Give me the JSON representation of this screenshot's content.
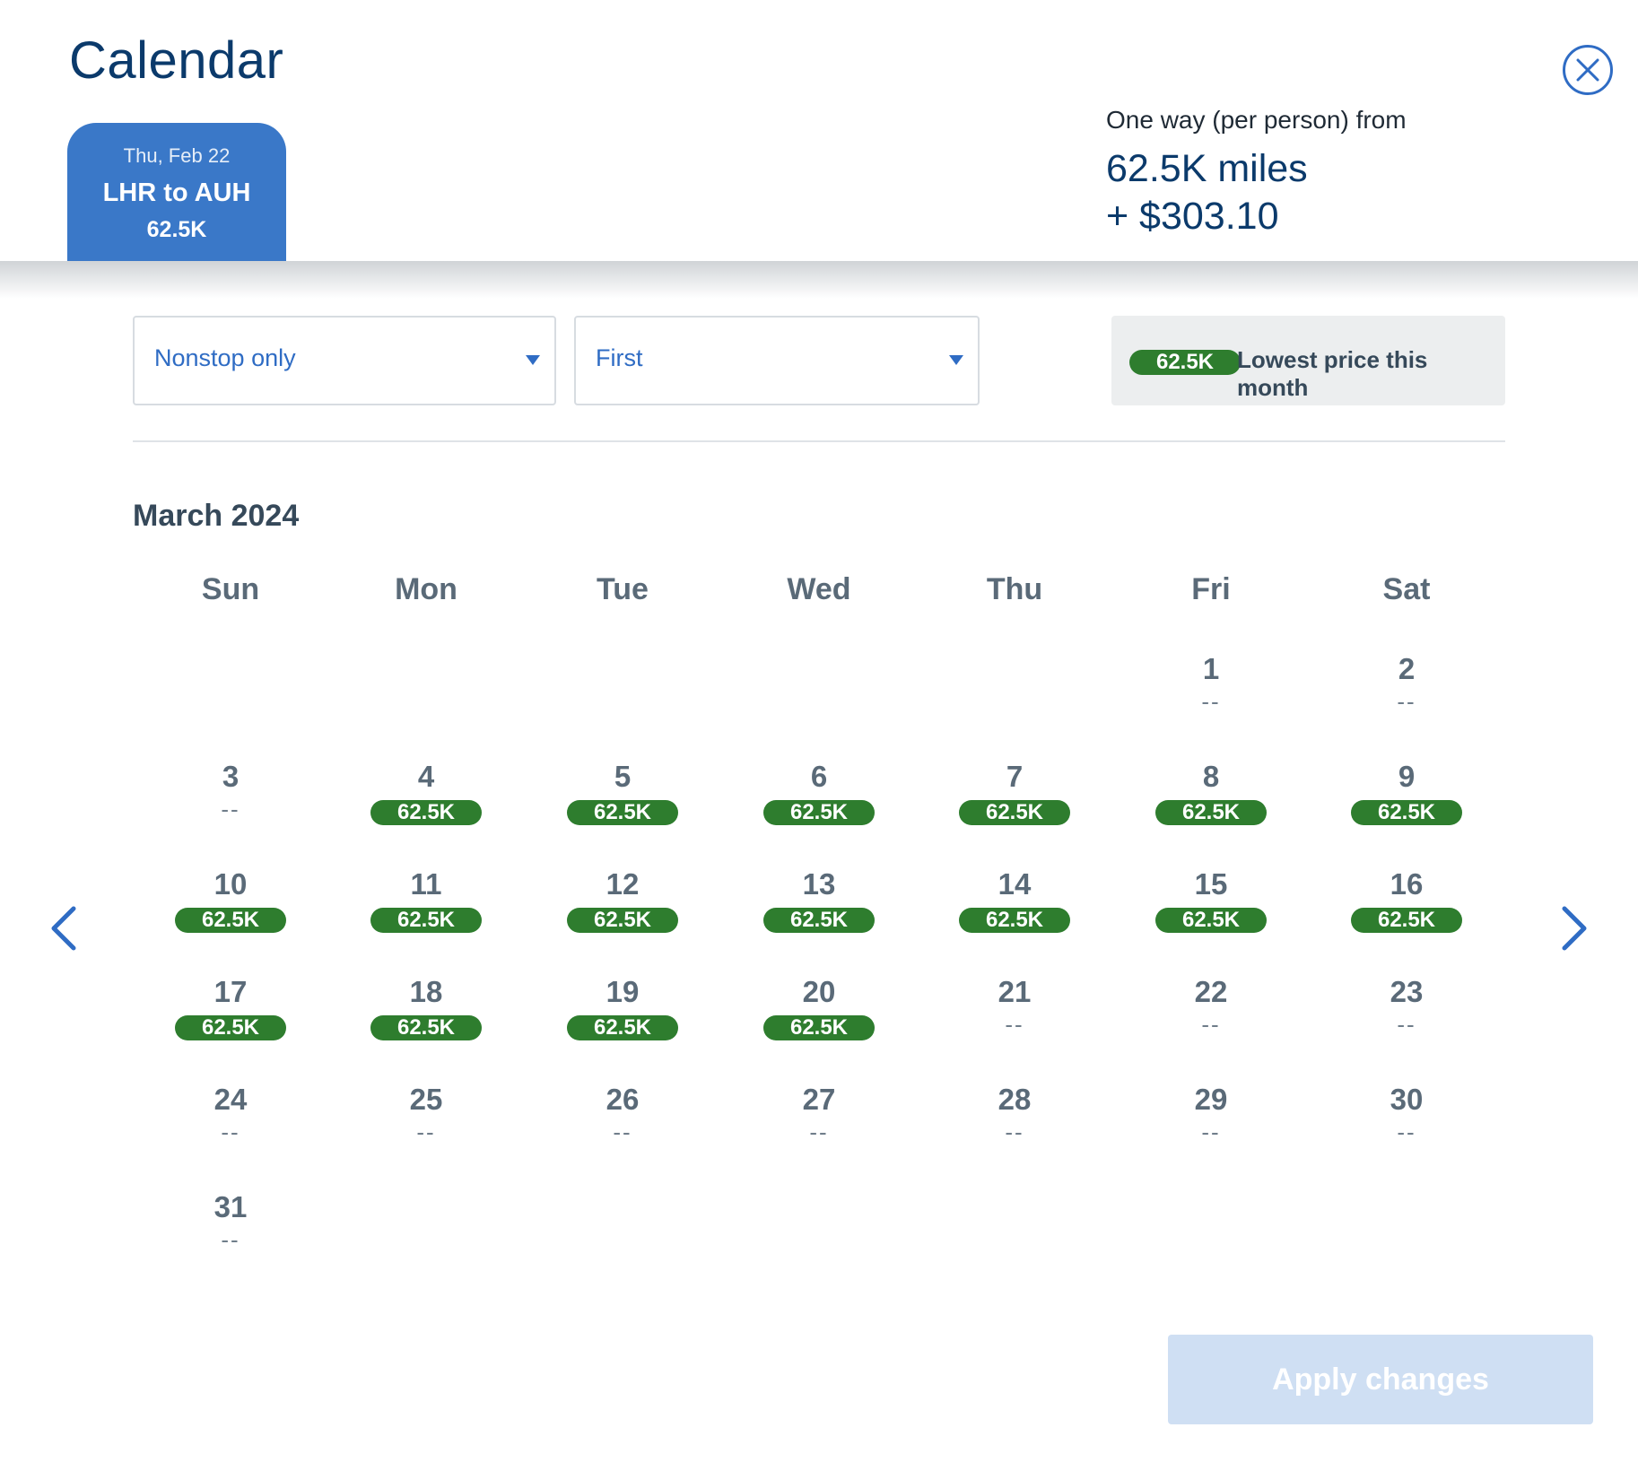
{
  "header": {
    "title": "Calendar",
    "close_icon": "close-icon"
  },
  "flight_tab": {
    "date": "Thu, Feb 22",
    "route": "LHR to AUH",
    "price": "62.5K"
  },
  "price_summary": {
    "caption": "One way (per person) from",
    "miles": "62.5K miles",
    "cash": "+ $303.10"
  },
  "filters": {
    "stops": {
      "value": "Nonstop only",
      "icon": "chevron-down-icon"
    },
    "cabin": {
      "value": "First",
      "icon": "chevron-down-icon"
    }
  },
  "legend": {
    "pill": "62.5K",
    "text": "Lowest price this month"
  },
  "calendar": {
    "month": "March 2024",
    "weekdays": [
      "Sun",
      "Mon",
      "Tue",
      "Wed",
      "Thu",
      "Fri",
      "Sat"
    ],
    "leading_blanks": 5,
    "days": [
      {
        "day": "1",
        "price": "--"
      },
      {
        "day": "2",
        "price": "--"
      },
      {
        "day": "3",
        "price": "--"
      },
      {
        "day": "4",
        "price": "62.5K"
      },
      {
        "day": "5",
        "price": "62.5K"
      },
      {
        "day": "6",
        "price": "62.5K"
      },
      {
        "day": "7",
        "price": "62.5K"
      },
      {
        "day": "8",
        "price": "62.5K"
      },
      {
        "day": "9",
        "price": "62.5K"
      },
      {
        "day": "10",
        "price": "62.5K"
      },
      {
        "day": "11",
        "price": "62.5K"
      },
      {
        "day": "12",
        "price": "62.5K"
      },
      {
        "day": "13",
        "price": "62.5K"
      },
      {
        "day": "14",
        "price": "62.5K"
      },
      {
        "day": "15",
        "price": "62.5K"
      },
      {
        "day": "16",
        "price": "62.5K"
      },
      {
        "day": "17",
        "price": "62.5K"
      },
      {
        "day": "18",
        "price": "62.5K"
      },
      {
        "day": "19",
        "price": "62.5K"
      },
      {
        "day": "20",
        "price": "62.5K"
      },
      {
        "day": "21",
        "price": "--"
      },
      {
        "day": "22",
        "price": "--"
      },
      {
        "day": "23",
        "price": "--"
      },
      {
        "day": "24",
        "price": "--"
      },
      {
        "day": "25",
        "price": "--"
      },
      {
        "day": "26",
        "price": "--"
      },
      {
        "day": "27",
        "price": "--"
      },
      {
        "day": "28",
        "price": "--"
      },
      {
        "day": "29",
        "price": "--"
      },
      {
        "day": "30",
        "price": "--"
      },
      {
        "day": "31",
        "price": "--"
      }
    ],
    "prev_icon": "chevron-left-icon",
    "next_icon": "chevron-right-icon"
  },
  "footer": {
    "apply_label": "Apply changes"
  },
  "colors": {
    "brand_blue": "#3a78c8",
    "title_navy": "#0b3a6b",
    "price_green": "#2e7d2e",
    "apply_disabled": "#cfdff3"
  }
}
